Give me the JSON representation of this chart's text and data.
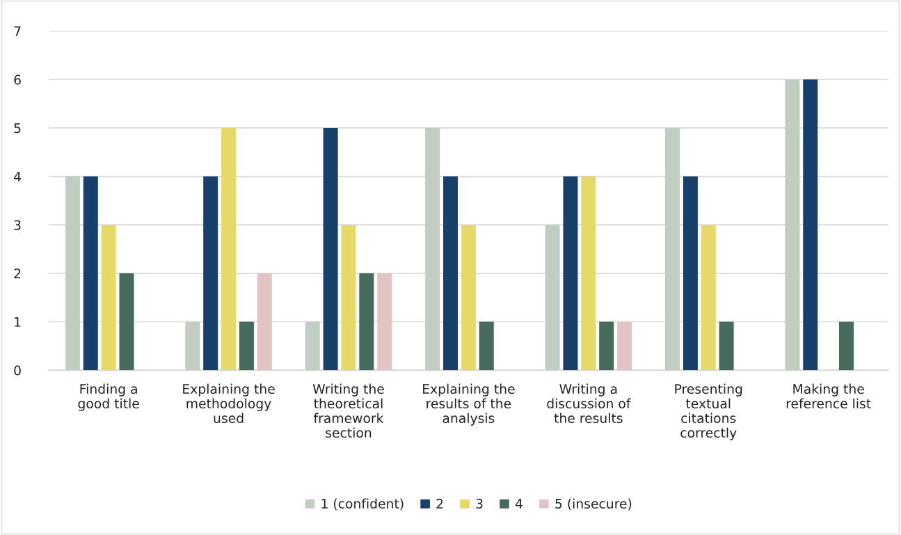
{
  "chart_data": {
    "type": "bar",
    "categories": [
      "Finding a\ngood title",
      "Explaining the\nmethodology\nused",
      "Writing the\ntheoretical\nframework\nsection",
      "Explaining the\nresults of the\nanalysis",
      "Writing a\ndiscussion of\nthe results",
      "Presenting\ntextual\ncitations\ncorrectly",
      "Making the\nreference list"
    ],
    "series": [
      {
        "name": "1 (confident)",
        "color": "#c0cdc0",
        "values": [
          4,
          1,
          1,
          5,
          3,
          5,
          6
        ]
      },
      {
        "name": "2",
        "color": "#17406a",
        "values": [
          4,
          4,
          5,
          4,
          4,
          4,
          6
        ]
      },
      {
        "name": "3",
        "color": "#e6d96a",
        "values": [
          3,
          5,
          3,
          3,
          4,
          3,
          null
        ]
      },
      {
        "name": "4",
        "color": "#466b5c",
        "values": [
          2,
          1,
          2,
          1,
          1,
          1,
          1
        ]
      },
      {
        "name": "5 (insecure)",
        "color": "#e2c4c4",
        "values": [
          null,
          2,
          2,
          null,
          1,
          null,
          null
        ]
      }
    ],
    "ylim": [
      0,
      7
    ],
    "yticks": [
      0,
      1,
      2,
      3,
      4,
      5,
      6,
      7
    ],
    "grid": "y",
    "legend": "bottom"
  }
}
